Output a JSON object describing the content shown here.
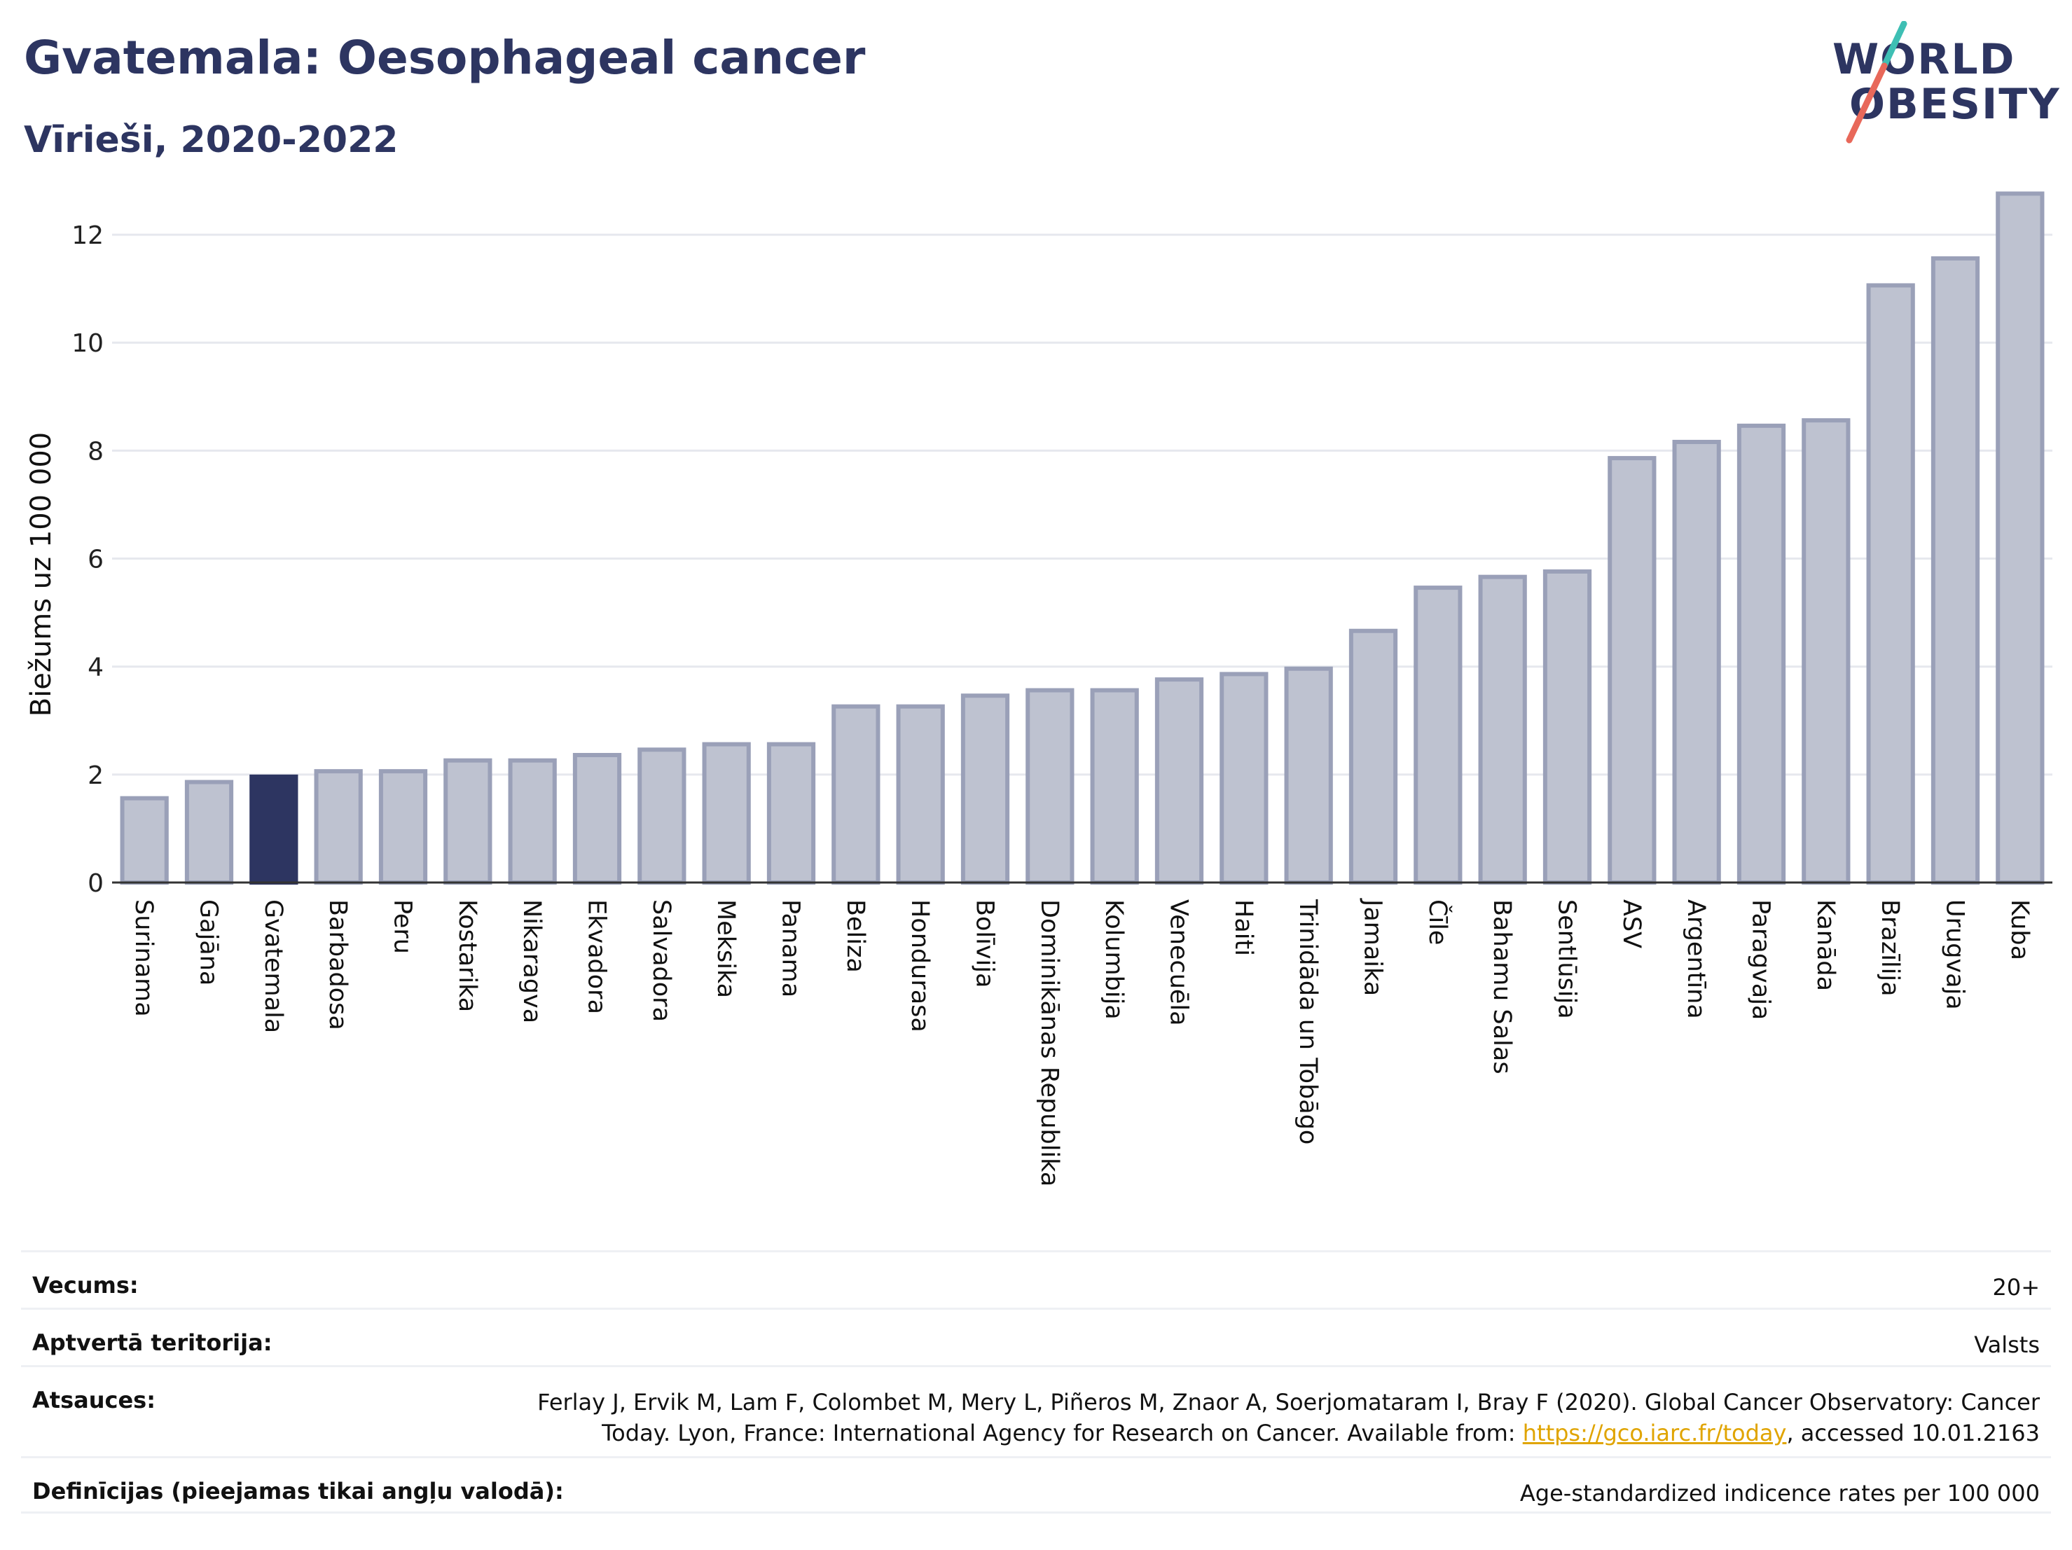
{
  "header": {
    "title": "Gvatemala: Oesophageal cancer",
    "subtitle": "Vīrieši, 2020-2022"
  },
  "logo": {
    "line1": "WORLD",
    "line2": "OBESITY",
    "colors": {
      "text": "#2d3561",
      "slash_top": "#3ebfb4",
      "slash_bottom": "#e8685a"
    }
  },
  "colors": {
    "bar": "#bec2d0",
    "bar_border": "#9aa0b8",
    "highlight": "#2d3561",
    "grid": "#e6e8ee",
    "axis": "#333333",
    "link": "#e0a400"
  },
  "chart_data": {
    "type": "bar",
    "ylabel": "Biežums uz 100 000",
    "ylim": [
      0,
      13
    ],
    "yticks": [
      0,
      2,
      4,
      6,
      8,
      10,
      12
    ],
    "grid": true,
    "highlight": "Gvatemala",
    "categories": [
      "Surinama",
      "Gajāna",
      "Gvatemala",
      "Barbadosa",
      "Peru",
      "Kostarika",
      "Nikaragva",
      "Ekvadora",
      "Salvadora",
      "Meksika",
      "Panama",
      "Beliza",
      "Hondurasa",
      "Bolīvija",
      "Dominikānas Republika",
      "Kolumbija",
      "Venecuēla",
      "Haiti",
      "Trinidāda un Tobāgo",
      "Jamaika",
      "Čīle",
      "Bahamu Salas",
      "Sentlūsija",
      "ASV",
      "Argentīna",
      "Paragvaja",
      "Kanāda",
      "Brazīlija",
      "Urugvaja",
      "Kuba"
    ],
    "values": [
      1.6,
      1.9,
      2.0,
      2.1,
      2.1,
      2.3,
      2.3,
      2.4,
      2.5,
      2.6,
      2.6,
      3.3,
      3.3,
      3.5,
      3.6,
      3.6,
      3.8,
      3.9,
      4.0,
      4.7,
      5.5,
      5.7,
      5.8,
      7.9,
      8.2,
      8.5,
      8.6,
      11.1,
      11.6,
      12.8
    ]
  },
  "info": {
    "age_label": "Vecums:",
    "age_value": "20+",
    "coverage_label": "Aptvertā teritorija:",
    "coverage_value": "Valsts",
    "refs_label": "Atsauces:",
    "refs_line1": "Ferlay J, Ervik M, Lam F, Colombet M, Mery L, Piñeros M, Znaor A, Soerjomataram I, Bray F (2020). Global Cancer Observatory: Cancer",
    "refs_line2a": "Today. Lyon, France: International Agency for Research on Cancer. Available from: ",
    "refs_link": "https://gco.iarc.fr/today",
    "refs_line2b": ", accessed 10.01.2163",
    "defs_label": "Definīcijas (pieejamas tikai angļu valodā):",
    "defs_value": "Age-standardized indicence rates per 100 000"
  }
}
